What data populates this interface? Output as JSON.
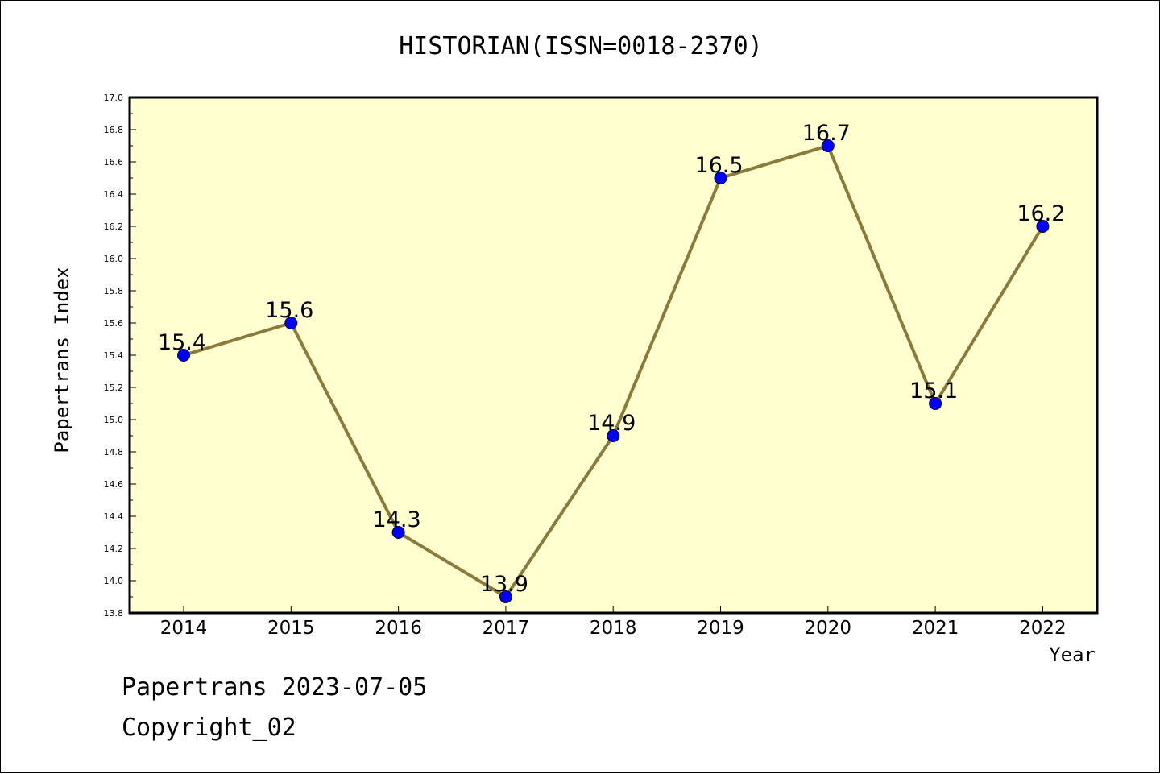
{
  "chart_data": {
    "type": "line",
    "title": "HISTORIAN(ISSN=0018-2370)",
    "xlabel": "Year",
    "ylabel": "Papertrans Index",
    "categories": [
      "2014",
      "2015",
      "2016",
      "2017",
      "2018",
      "2019",
      "2020",
      "2021",
      "2022"
    ],
    "values": [
      15.4,
      15.6,
      14.3,
      13.9,
      14.9,
      16.5,
      16.7,
      15.1,
      16.2
    ],
    "data_labels": [
      "15.4",
      "15.6",
      "14.3",
      "13.9",
      "14.9",
      "16.5",
      "16.7",
      "15.1",
      "16.2"
    ],
    "ylim": [
      13.8,
      17.0
    ],
    "yticks": [
      "13.8",
      "14.0",
      "14.2",
      "14.4",
      "14.6",
      "14.8",
      "15.0",
      "15.2",
      "15.4",
      "15.6",
      "15.8",
      "16.0",
      "16.2",
      "16.4",
      "16.6",
      "16.8",
      "17.0"
    ],
    "grid": false,
    "legend": "none",
    "colors": {
      "plot_background": "#FFFFD0",
      "line": "#8B7B3A",
      "marker": "#0000FF"
    }
  },
  "footer": {
    "line1": "Papertrans 2023-07-05",
    "line2": "Copyright_02"
  }
}
